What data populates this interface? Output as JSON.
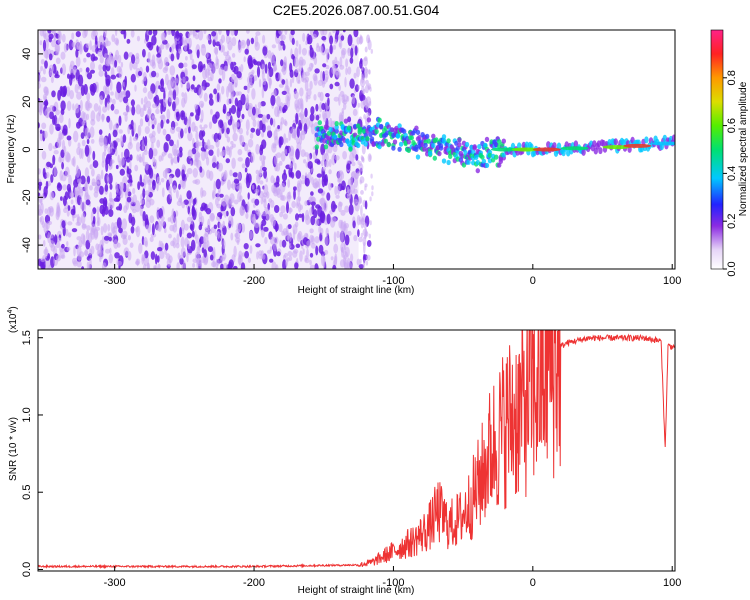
{
  "chart_data": [
    {
      "type": "heatmap",
      "title": "C2E5.2026.087.00.51.G04",
      "xlabel": "Height of straight line (km)",
      "ylabel": "Frequency (Hz)",
      "xlim": [
        -355,
        102
      ],
      "ylim": [
        -50,
        50
      ],
      "xticks": [
        -300,
        -200,
        -100,
        0,
        100
      ],
      "yticks": [
        -40,
        -20,
        0,
        20,
        40
      ],
      "colorbar": {
        "label": "Normalized spectral amplitude",
        "range": [
          0,
          1
        ],
        "ticks": [
          "0.0",
          "0.2",
          "0.4",
          "0.6",
          "0.8"
        ],
        "tick_values": [
          0.0,
          0.2,
          0.4,
          0.6,
          0.8
        ]
      },
      "noise_region": {
        "x_from": -355,
        "x_to": -125,
        "freq_range": [
          -50,
          50
        ],
        "amplitude": 0.1
      },
      "signal_ridge": [
        {
          "x": -155,
          "f": 5
        },
        {
          "x": -140,
          "f": 6
        },
        {
          "x": -120,
          "f": 7
        },
        {
          "x": -100,
          "f": 6
        },
        {
          "x": -80,
          "f": 3
        },
        {
          "x": -60,
          "f": 0
        },
        {
          "x": -40,
          "f": -3
        },
        {
          "x": -30,
          "f": -1
        },
        {
          "x": -20,
          "f": 0
        },
        {
          "x": 0,
          "f": 0
        },
        {
          "x": 50,
          "f": 1
        },
        {
          "x": 100,
          "f": 3
        }
      ]
    },
    {
      "type": "line",
      "xlabel": "Height of straight line (km)",
      "ylabel": "SNR (10 * v/v)",
      "y_scale_label": "(x10",
      "y_scale_exponent": "4",
      "xlim": [
        -355,
        102
      ],
      "ylim": [
        -0.01,
        1.55
      ],
      "xticks": [
        -300,
        -200,
        -100,
        0,
        100
      ],
      "yticks": [
        "0.0",
        "0.5",
        "1.0",
        "1.5"
      ],
      "ytick_values": [
        0.0,
        0.5,
        1.0,
        1.5
      ],
      "series": [
        {
          "name": "SNR",
          "color": "#ee3333",
          "points": [
            [
              -355,
              0.02
            ],
            [
              -200,
              0.02
            ],
            [
              -125,
              0.03
            ],
            [
              -115,
              0.05
            ],
            [
              -105,
              0.1
            ],
            [
              -95,
              0.15
            ],
            [
              -85,
              0.2
            ],
            [
              -75,
              0.28
            ],
            [
              -68,
              0.4
            ],
            [
              -60,
              0.3
            ],
            [
              -52,
              0.35
            ],
            [
              -45,
              0.45
            ],
            [
              -38,
              0.6
            ],
            [
              -30,
              0.82
            ],
            [
              -22,
              0.95
            ],
            [
              -15,
              1.05
            ],
            [
              -8,
              1.1
            ],
            [
              0,
              1.22
            ],
            [
              8,
              1.35
            ],
            [
              15,
              1.42
            ],
            [
              25,
              1.47
            ],
            [
              40,
              1.5
            ],
            [
              60,
              1.5
            ],
            [
              80,
              1.5
            ],
            [
              92,
              1.48
            ],
            [
              95,
              0.78
            ],
            [
              97,
              1.45
            ],
            [
              102,
              1.44
            ]
          ]
        }
      ]
    }
  ],
  "colors": {
    "snr_line": "#ee3333",
    "noise_strong": "#6a1fe0",
    "noise_light": "#c9a6f2",
    "ridge_core": "#e83a2a"
  }
}
